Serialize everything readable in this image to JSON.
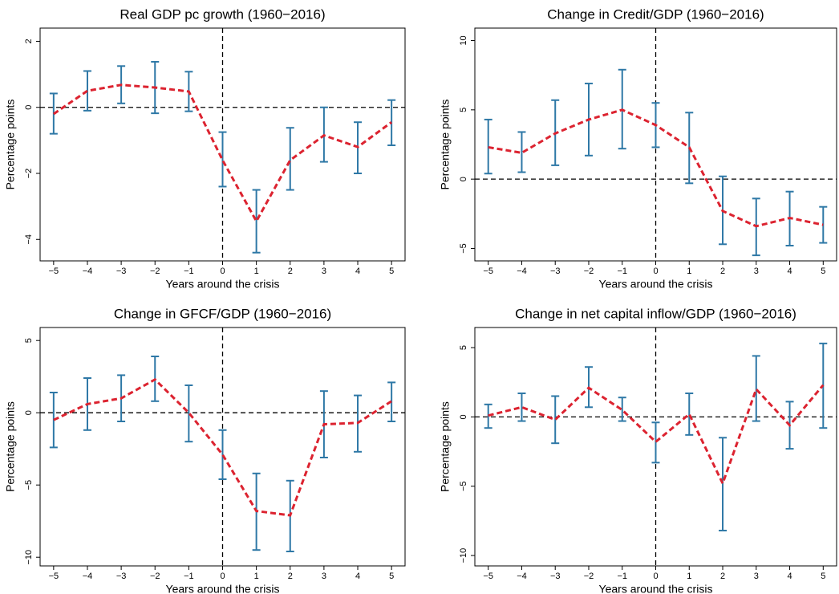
{
  "chart_data": [
    {
      "type": "line",
      "title": "Real GDP pc growth (1960−2016)",
      "x_label": "Years around the crisis",
      "y_label": "Percentage points",
      "x": [
        -5,
        -4,
        -3,
        -2,
        -1,
        0,
        1,
        2,
        3,
        4,
        5
      ],
      "values": [
        -0.2,
        0.5,
        0.68,
        0.6,
        0.48,
        -1.6,
        -3.45,
        -1.6,
        -0.85,
        -1.2,
        -0.45
      ],
      "lower": [
        -0.8,
        -0.1,
        0.12,
        -0.18,
        -0.12,
        -2.4,
        -4.4,
        -2.5,
        -1.65,
        -2.0,
        -1.15
      ],
      "upper": [
        0.42,
        1.1,
        1.25,
        1.38,
        1.08,
        -0.75,
        -2.5,
        -0.62,
        0,
        -0.45,
        0.22
      ],
      "line_color": "#dc2330",
      "error_color": "#2e78a6",
      "xlim": [
        -5.4,
        5.4
      ],
      "ylim": [
        -4.65,
        2.4
      ],
      "xticks": [
        {
          "value": -5,
          "label": "−5"
        },
        {
          "value": -4,
          "label": "−4"
        },
        {
          "value": -3,
          "label": "−3"
        },
        {
          "value": -2,
          "label": "−2"
        },
        {
          "value": -1,
          "label": "−1"
        },
        0,
        1,
        2,
        3,
        4,
        5
      ],
      "yticks": [
        {
          "value": -4,
          "label": "−4"
        },
        {
          "value": -2,
          "label": "−2"
        },
        0,
        2
      ],
      "hline": 0,
      "vline": 0
    },
    {
      "type": "line",
      "title": "Change in Credit/GDP (1960−2016)",
      "x_label": "Years around the crisis",
      "y_label": "Percentage points",
      "x": [
        -5,
        -4,
        -3,
        -2,
        -1,
        0,
        1,
        2,
        3,
        4,
        5
      ],
      "values": [
        2.3,
        1.9,
        3.3,
        4.3,
        5.0,
        3.9,
        2.3,
        -2.3,
        -3.4,
        -2.8,
        -3.3
      ],
      "lower": [
        0.4,
        0.5,
        1.0,
        1.7,
        2.2,
        2.3,
        -0.3,
        -4.7,
        -5.5,
        -4.8,
        -4.6
      ],
      "upper": [
        4.3,
        3.4,
        5.7,
        6.9,
        7.9,
        5.5,
        4.8,
        0.2,
        -1.4,
        -0.9,
        -2.0
      ],
      "line_color": "#dc2330",
      "error_color": "#2e78a6",
      "xlim": [
        -5.4,
        5.4
      ],
      "ylim": [
        -5.9,
        10.9
      ],
      "xticks": [
        {
          "value": -5,
          "label": "−5"
        },
        {
          "value": -4,
          "label": "−4"
        },
        {
          "value": -3,
          "label": "−3"
        },
        {
          "value": -2,
          "label": "−2"
        },
        {
          "value": -1,
          "label": "−1"
        },
        0,
        1,
        2,
        3,
        4,
        5
      ],
      "yticks": [
        {
          "value": -5,
          "label": "−5"
        },
        0,
        5,
        10
      ],
      "hline": 0,
      "vline": 0
    },
    {
      "type": "line",
      "title": "Change in GFCF/GDP (1960−2016)",
      "x_label": "Years around the crisis",
      "y_label": "Percentage points",
      "x": [
        -5,
        -4,
        -3,
        -2,
        -1,
        0,
        1,
        2,
        3,
        4,
        5
      ],
      "values": [
        -0.5,
        0.6,
        1.0,
        2.3,
        0,
        -2.9,
        -6.8,
        -7.1,
        -0.8,
        -0.7,
        0.8
      ],
      "lower": [
        -2.4,
        -1.2,
        -0.6,
        0.8,
        -2.0,
        -4.6,
        -9.5,
        -9.6,
        -3.1,
        -2.7,
        -0.6
      ],
      "upper": [
        1.4,
        2.4,
        2.6,
        3.9,
        1.9,
        -1.2,
        -4.2,
        -4.7,
        1.5,
        1.2,
        2.1
      ],
      "line_color": "#dc2330",
      "error_color": "#2e78a6",
      "xlim": [
        -5.4,
        5.4
      ],
      "ylim": [
        -10.6,
        5.9
      ],
      "xticks": [
        {
          "value": -5,
          "label": "−5"
        },
        {
          "value": -4,
          "label": "−4"
        },
        {
          "value": -3,
          "label": "−3"
        },
        {
          "value": -2,
          "label": "−2"
        },
        {
          "value": -1,
          "label": "−1"
        },
        0,
        1,
        2,
        3,
        4,
        5
      ],
      "yticks": [
        {
          "value": -10,
          "label": "−10"
        },
        {
          "value": -5,
          "label": "−5"
        },
        0,
        5
      ],
      "hline": 0,
      "vline": 0
    },
    {
      "type": "line",
      "title": "Change in net capital inflow/GDP (1960−2016)",
      "x_label": "Years around the crisis",
      "y_label": "Percentage points",
      "x": [
        -5,
        -4,
        -3,
        -2,
        -1,
        0,
        1,
        2,
        3,
        4,
        5
      ],
      "values": [
        0.1,
        0.7,
        -0.2,
        2.1,
        0.5,
        -1.8,
        0.2,
        -4.8,
        2.0,
        -0.6,
        2.3
      ],
      "lower": [
        -0.8,
        -0.3,
        -1.9,
        0.7,
        -0.3,
        -3.3,
        -1.3,
        -8.2,
        -0.3,
        -2.3,
        -0.8
      ],
      "upper": [
        0.9,
        1.7,
        1.5,
        3.6,
        1.4,
        -0.4,
        1.7,
        -1.5,
        4.4,
        1.1,
        5.3
      ],
      "line_color": "#dc2330",
      "error_color": "#2e78a6",
      "xlim": [
        -5.4,
        5.4
      ],
      "ylim": [
        -10.75,
        6.45
      ],
      "xticks": [
        {
          "value": -5,
          "label": "−5"
        },
        {
          "value": -4,
          "label": "−4"
        },
        {
          "value": -3,
          "label": "−3"
        },
        {
          "value": -2,
          "label": "−2"
        },
        {
          "value": -1,
          "label": "−1"
        },
        0,
        1,
        2,
        3,
        4,
        5
      ],
      "yticks": [
        {
          "value": -10,
          "label": "−10"
        },
        {
          "value": -5,
          "label": "−5"
        },
        0,
        5
      ],
      "hline": 0,
      "vline": 0
    }
  ]
}
